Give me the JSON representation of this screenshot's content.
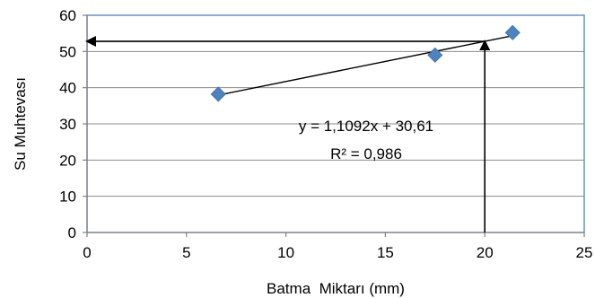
{
  "chart_data": {
    "type": "scatter",
    "title": "",
    "xlabel": "Batma  Miktarı (mm)",
    "ylabel": "Su Muhtevası",
    "xlim": [
      0,
      25
    ],
    "ylim": [
      0,
      60
    ],
    "xticks": [
      0,
      5,
      10,
      15,
      20,
      25
    ],
    "yticks": [
      0,
      10,
      20,
      30,
      40,
      50,
      60
    ],
    "xtick_labels": [
      "0",
      "5",
      "10",
      "15",
      "20",
      "25"
    ],
    "ytick_labels": [
      "0",
      "10",
      "20",
      "30",
      "40",
      "50",
      "60"
    ],
    "grid": "horizontal",
    "legend": "none",
    "series": [
      {
        "marker": "diamond",
        "color": "#4F81BD",
        "points": [
          {
            "x": 6.6,
            "y": 38.2
          },
          {
            "x": 17.5,
            "y": 49.0
          },
          {
            "x": 21.4,
            "y": 55.2
          }
        ]
      }
    ],
    "trendline": {
      "type": "linear",
      "slope": 1.1092,
      "intercept": 30.61,
      "x_range": [
        6.6,
        21.4
      ],
      "equation_label": "y = 1,1092x + 30,61",
      "r2_label": "R² = 0,986"
    },
    "annotations": [
      {
        "kind": "arrow",
        "from": {
          "x": 20,
          "y": 0
        },
        "to": {
          "x": 20,
          "y": 52.8
        }
      },
      {
        "kind": "arrow",
        "from": {
          "x": 20,
          "y": 52.8
        },
        "to": {
          "x": 0,
          "y": 52.8
        }
      }
    ],
    "colors": {
      "plot_border": "#4F81BD",
      "gridline": "#8C8C8C",
      "axis": "#808080",
      "marker": "#4F81BD",
      "line": "#000000"
    }
  }
}
